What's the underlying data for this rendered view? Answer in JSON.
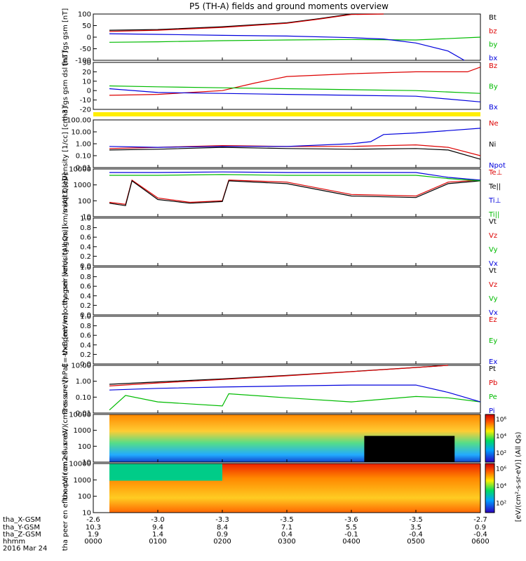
{
  "title": "P5 (TH-A) fields and ground moments overview",
  "panels": [
    {
      "ylabel": "tha fgs gsm [nT]",
      "ticks": [
        "100",
        "50",
        "0",
        "-50",
        "-100"
      ],
      "legend": [
        "Bt",
        "bz",
        "by",
        "bx"
      ],
      "legend_colors": [
        "#000000",
        "#dd0000",
        "#00bb00",
        "#0000dd"
      ]
    },
    {
      "ylabel": "tha fgs gsm dsl [nT]",
      "ticks": [
        "30",
        "20",
        "10",
        "0",
        "-10",
        "-20"
      ],
      "legend": [
        "Bz",
        "By",
        "Bx"
      ],
      "legend_colors": [
        "#dd0000",
        "#00bb00",
        "#0000dd"
      ]
    },
    {
      "ylabel": "Density [1/cc] [cm-3]",
      "ticks": [
        "100.00",
        "10.00",
        "1.00",
        "0.10",
        "0.01"
      ],
      "legend": [
        "Ne",
        "Ni",
        "Npot"
      ],
      "legend_colors": [
        "#dd0000",
        "#000000",
        "#0000dd"
      ]
    },
    {
      "ylabel": "moqt3 [eV]",
      "ticks": [
        "10000",
        "1000",
        "100",
        "10"
      ],
      "legend": [
        "Te⊥",
        "Te||",
        "Ti⊥",
        "Ti||"
      ],
      "legend_colors": [
        "#dd0000",
        "#000000",
        "#0000dd",
        "#00bb00"
      ]
    },
    {
      "ylabel": "tha peir velocity gsm [km/s (All Qs)]",
      "ticks": [
        "1.0",
        "0.8",
        "0.6",
        "0.4",
        "0.2",
        "0.0"
      ],
      "legend": [
        "Vt",
        "Vz",
        "Vy",
        "Vx"
      ],
      "legend_colors": [
        "#000000",
        "#dd0000",
        "#00bb00",
        "#0000dd"
      ]
    },
    {
      "ylabel": "tha peer velocity gsm [km/s (All Qs)]",
      "ticks": [
        "1.0",
        "0.8",
        "0.6",
        "0.4",
        "0.2",
        "0.0"
      ],
      "legend": [
        "Vt",
        "Vz",
        "Vy",
        "Vx"
      ],
      "legend_colors": [
        "#000000",
        "#dd0000",
        "#00bb00",
        "#0000dd"
      ]
    },
    {
      "ylabel": "E=-VxB [mV/m]",
      "ticks": [
        "1.0",
        "0.8",
        "0.6",
        "0.4",
        "0.2",
        "0.0"
      ],
      "legend": [
        "Ez",
        "Ey",
        "Ex"
      ],
      "legend_colors": [
        "#dd0000",
        "#00bb00",
        "#0000dd"
      ]
    },
    {
      "ylabel": "Pressure [nPa]",
      "ticks": [
        "10.00",
        "1.00",
        "0.10",
        "0.01"
      ],
      "legend": [
        "Pt",
        "Pb",
        "Pe",
        "Pi"
      ],
      "legend_colors": [
        "#000000",
        "#dd0000",
        "#00bb00",
        "#0000dd"
      ]
    },
    {
      "ylabel": "tha peir en eflux eV/ (cm2-s- sr-eV)",
      "ticks": [
        "10000",
        "1000",
        "100",
        "10"
      ],
      "colorbar_ticks": [
        "10⁶",
        "10⁴",
        "10²"
      ],
      "colorbar_label": "[eV/(cm²-s-sr-eV)] (All Qs)"
    },
    {
      "ylabel": "tha peer en eflux eV/ (cm2-s- sr-eV)",
      "ticks": [
        "10000",
        "1000",
        "100",
        "10"
      ],
      "colorbar_ticks": [
        "10⁶",
        "10⁴",
        "10²"
      ],
      "colorbar_label": "[eV/(cm²-s-sr-eV)] (All Qs)"
    }
  ],
  "bottom": {
    "row_labels": [
      "tha_X-GSM",
      "tha_Y-GSM",
      "tha_Z-GSM",
      "hhmm",
      "2016 Mar 24"
    ],
    "columns": [
      {
        "x": "-2.6",
        "y": "10.3",
        "z": "1.9",
        "hhmm": "0000"
      },
      {
        "x": "-3.0",
        "y": "9.4",
        "z": "1.4",
        "hhmm": "0100"
      },
      {
        "x": "-3.3",
        "y": "8.4",
        "z": "0.9",
        "hhmm": "0200"
      },
      {
        "x": "-3.5",
        "y": "7.1",
        "z": "0.4",
        "hhmm": "0300"
      },
      {
        "x": "-3.6",
        "y": "5.5",
        "z": "-0.1",
        "hhmm": "0400"
      },
      {
        "x": "-3.5",
        "y": "3.5",
        "z": "-0.4",
        "hhmm": "0500"
      },
      {
        "x": "-2.7",
        "y": "0.9",
        "z": "-0.4",
        "hhmm": "0600"
      }
    ]
  },
  "chart_data": {
    "type": "line",
    "title": "P5 (TH-A) fields and ground moments overview",
    "x_unit": "hhmm",
    "date": "2016 Mar 24",
    "x_range": [
      "0000",
      "0600"
    ],
    "data_start": "0025",
    "panels": [
      {
        "name": "fgs gsm",
        "ylim": [
          -100,
          100
        ],
        "series": [
          {
            "name": "Bt",
            "color": "#000000",
            "x": [
              0.25,
              1,
              2,
              3,
              3.5,
              4,
              4.5
            ],
            "values": [
              30,
              33,
              45,
              62,
              80,
              100,
              110
            ]
          },
          {
            "name": "bz",
            "color": "#dd0000",
            "x": [
              0.25,
              1,
              2,
              3,
              3.5,
              4,
              4.5
            ],
            "values": [
              25,
              30,
              42,
              60,
              78,
              98,
              108
            ]
          },
          {
            "name": "by",
            "color": "#00bb00",
            "x": [
              0.25,
              1,
              2,
              3,
              4,
              5,
              6
            ],
            "values": [
              -22,
              -20,
              -15,
              -12,
              -10,
              -12,
              0
            ]
          },
          {
            "name": "bx",
            "color": "#0000dd",
            "x": [
              0.25,
              1,
              2,
              3,
              4,
              4.5,
              5,
              5.5,
              5.75
            ],
            "values": [
              15,
              12,
              8,
              5,
              -2,
              -8,
              -25,
              -60,
              -100
            ]
          }
        ]
      },
      {
        "name": "fgs gsm dsl",
        "ylim": [
          -20,
          30
        ],
        "series": [
          {
            "name": "Bz",
            "color": "#dd0000",
            "x": [
              0.25,
              1,
              2,
              2.5,
              3,
              4,
              5,
              5.8,
              6
            ],
            "values": [
              -5,
              -4,
              0,
              8,
              15,
              18,
              20,
              20,
              25
            ]
          },
          {
            "name": "By",
            "color": "#00bb00",
            "x": [
              0.25,
              1,
              2,
              3,
              4,
              5,
              6
            ],
            "values": [
              5,
              4,
              3,
              2,
              1,
              0,
              -3
            ]
          },
          {
            "name": "Bx",
            "color": "#0000dd",
            "x": [
              0.25,
              1,
              2,
              3,
              4,
              5,
              6
            ],
            "values": [
              2,
              -2,
              -3,
              -4,
              -5,
              -6,
              -12
            ]
          }
        ]
      },
      {
        "name": "Density",
        "scale": "log",
        "ylim": [
          0.01,
          100
        ],
        "series": [
          {
            "name": "Ne",
            "color": "#dd0000",
            "x": [
              0.25,
              1,
              2,
              3,
              4,
              5,
              5.5,
              6
            ],
            "values": [
              0.4,
              0.5,
              0.7,
              0.6,
              0.6,
              0.8,
              0.5,
              0.1
            ]
          },
          {
            "name": "Ni",
            "color": "#000000",
            "x": [
              0.25,
              1,
              2,
              3,
              4,
              5,
              5.5,
              6
            ],
            "values": [
              0.3,
              0.35,
              0.5,
              0.4,
              0.35,
              0.4,
              0.3,
              0.05
            ]
          },
          {
            "name": "Npot",
            "color": "#0000dd",
            "x": [
              0.25,
              1,
              2,
              3,
              4,
              4.3,
              4.5,
              5,
              6
            ],
            "values": [
              0.6,
              0.5,
              0.6,
              0.6,
              1.0,
              1.5,
              6,
              8,
              20
            ]
          }
        ]
      },
      {
        "name": "moqt3",
        "scale": "log",
        "ylim": [
          10,
          10000
        ],
        "series": [
          {
            "name": "Te⊥",
            "color": "#dd0000",
            "x": [
              0.25,
              0.5,
              0.6,
              1,
              1.5,
              2,
              2.1,
              3,
              4,
              5,
              5.5,
              6
            ],
            "values": [
              80,
              60,
              2000,
              150,
              80,
              100,
              2000,
              1500,
              250,
              200,
              1500,
              2000
            ]
          },
          {
            "name": "Te||",
            "color": "#000000",
            "x": [
              0.25,
              0.5,
              0.6,
              1,
              1.5,
              2,
              2.1,
              3,
              4,
              5,
              5.5,
              6
            ],
            "values": [
              70,
              50,
              1800,
              120,
              70,
              90,
              1800,
              1200,
              200,
              160,
              1200,
              1800
            ]
          },
          {
            "name": "Ti⊥",
            "color": "#0000dd",
            "x": [
              0.25,
              1,
              2,
              3,
              4,
              5,
              5.5,
              6
            ],
            "values": [
              6000,
              6000,
              6500,
              6000,
              6000,
              6000,
              3000,
              2000
            ]
          },
          {
            "name": "Ti||",
            "color": "#00bb00",
            "x": [
              0.25,
              1,
              2,
              3,
              4,
              5,
              5.5,
              6
            ],
            "values": [
              4000,
              4000,
              4500,
              4000,
              4000,
              4000,
              2500,
              1800
            ]
          }
        ]
      },
      {
        "name": "Pressure",
        "scale": "log",
        "ylim": [
          0.003,
          10
        ],
        "series": [
          {
            "name": "Pt",
            "color": "#000000",
            "x": [
              0.25,
              1,
              2,
              3,
              4,
              5,
              5.5
            ],
            "values": [
              0.4,
              0.6,
              1.0,
              1.8,
              3.5,
              7.0,
              12
            ]
          },
          {
            "name": "Pb",
            "color": "#dd0000",
            "x": [
              0.25,
              1,
              2,
              3,
              4,
              5,
              5.5
            ],
            "values": [
              0.3,
              0.5,
              0.9,
              1.7,
              3.4,
              6.9,
              12
            ]
          },
          {
            "name": "Pe",
            "color": "#00bb00",
            "x": [
              0.25,
              0.5,
              1,
              2,
              2.1,
              3,
              4,
              5,
              5.5,
              6
            ],
            "values": [
              0.005,
              0.06,
              0.02,
              0.01,
              0.08,
              0.04,
              0.02,
              0.05,
              0.04,
              0.02
            ]
          },
          {
            "name": "Pi",
            "color": "#0000dd",
            "x": [
              0.25,
              1,
              2,
              3,
              4,
              5,
              5.5,
              6
            ],
            "values": [
              0.15,
              0.2,
              0.25,
              0.3,
              0.35,
              0.35,
              0.1,
              0.02
            ]
          }
        ]
      }
    ]
  }
}
